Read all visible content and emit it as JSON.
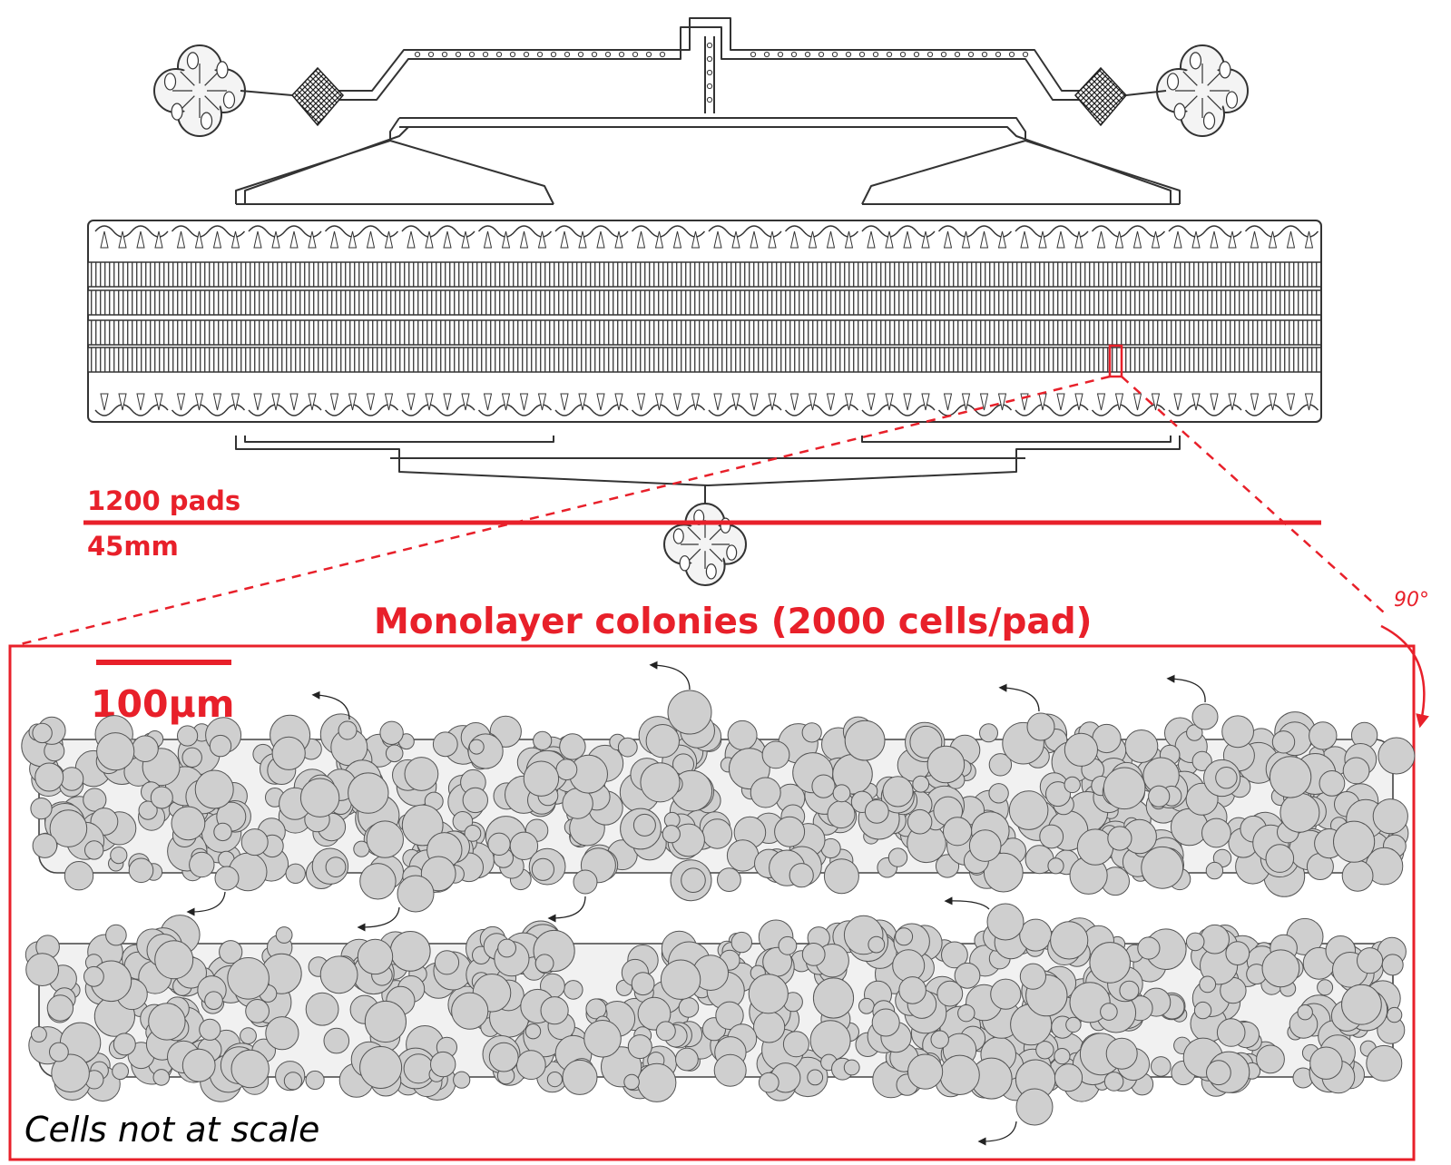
{
  "labels": {
    "pads": "1200 pads",
    "length": "45mm",
    "title": "Monolayer colonies (2000 cells/pad)",
    "scale": "100µm",
    "note": "Cells not at scale",
    "rotation": "90°"
  },
  "colors": {
    "accent": "#e8202a",
    "channel_stroke": "#333333",
    "cell_fill": "#cfcfcf",
    "pad_fill": "#f1f1f1"
  },
  "icons": [
    "arrow-curved-icon",
    "rotate-arrow-icon"
  ]
}
